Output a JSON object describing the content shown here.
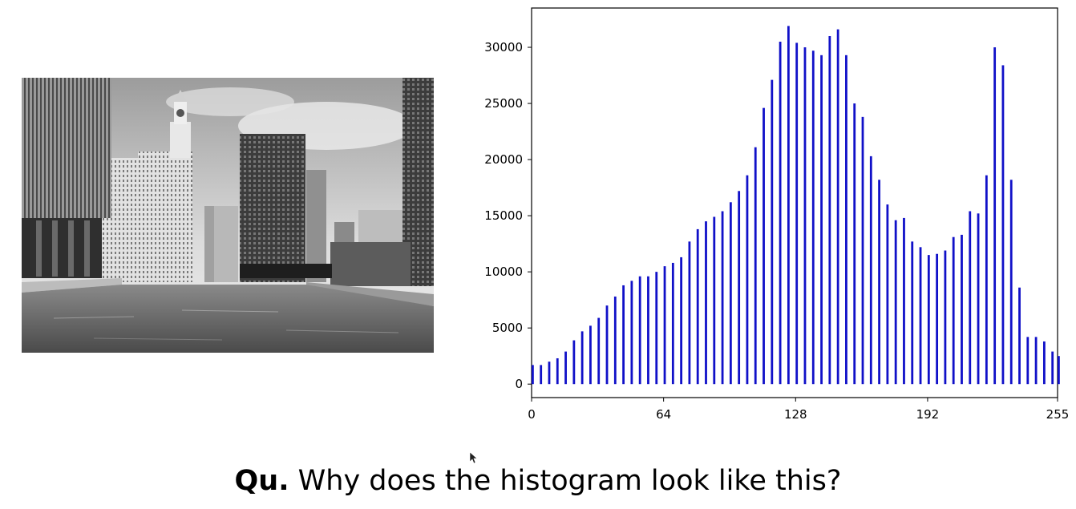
{
  "question": {
    "label": "Qu.",
    "text": "Why does the histogram look like this?"
  },
  "photo": {
    "subject": "grayscale photograph of Chicago River with city buildings and clock tower"
  },
  "colors": {
    "bars": "#1010c8",
    "axis": "#000000"
  },
  "chart_data": {
    "type": "bar",
    "title": "",
    "xlabel": "",
    "ylabel": "",
    "xlim": [
      0,
      255
    ],
    "ylim": [
      -1200,
      33500
    ],
    "xticks": [
      0,
      64,
      128,
      192,
      255
    ],
    "yticks": [
      0,
      5000,
      10000,
      15000,
      20000,
      25000,
      30000
    ],
    "x": [
      0,
      4,
      8,
      12,
      16,
      20,
      24,
      28,
      32,
      36,
      40,
      44,
      48,
      52,
      56,
      60,
      64,
      68,
      72,
      76,
      80,
      84,
      88,
      92,
      96,
      100,
      104,
      108,
      112,
      116,
      120,
      124,
      128,
      132,
      136,
      140,
      144,
      148,
      152,
      156,
      160,
      164,
      168,
      172,
      176,
      180,
      184,
      188,
      192,
      196,
      200,
      204,
      208,
      212,
      216,
      220,
      224,
      228,
      232,
      236,
      240,
      244,
      248,
      252,
      255
    ],
    "values": [
      1700,
      1700,
      2000,
      2300,
      2900,
      3900,
      4700,
      5200,
      5900,
      7000,
      7800,
      8800,
      9200,
      9600,
      9600,
      10000,
      10500,
      10800,
      11300,
      12700,
      13800,
      14500,
      14900,
      15400,
      16200,
      17200,
      18600,
      21100,
      24600,
      27100,
      30500,
      31900,
      30400,
      30000,
      29700,
      29300,
      31000,
      31600,
      29300,
      25000,
      23800,
      20300,
      18200,
      16000,
      14600,
      14800,
      12700,
      12200,
      11500,
      11600,
      11900,
      13100,
      13300,
      15400,
      15200,
      18600,
      30000,
      28400,
      18200,
      8600,
      4200,
      4200,
      3800,
      2900,
      2500
    ]
  }
}
